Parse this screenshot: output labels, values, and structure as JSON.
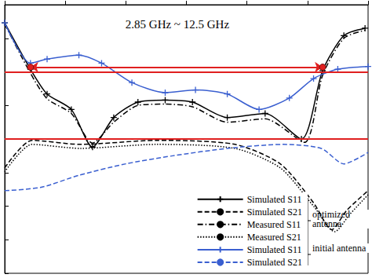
{
  "chart_data": {
    "type": "line",
    "xlim": [
      2,
      14
    ],
    "xticks": [
      2,
      4,
      6,
      8,
      10,
      12,
      14
    ],
    "ylim": [
      -40,
      0
    ],
    "yticks": [
      -40,
      -35,
      -30,
      -25,
      -20,
      -15,
      -10,
      -5,
      0
    ],
    "grid": false,
    "tick_labels": false,
    "legend": "lower right",
    "annotations": [
      {
        "text": "2.85 GHz ~ 12.5 GHz",
        "x": 7.7,
        "y": -2.9
      }
    ],
    "range_arrow": {
      "x": [
        2.85,
        12.5
      ],
      "y": -9.3,
      "color": "#e02020"
    },
    "hlines": [
      {
        "y": -10,
        "color": "#e02020"
      },
      {
        "y": -20,
        "color": "#e02020"
      }
    ],
    "legend_groups": [
      {
        "label": "optimized antenna",
        "series": [
          "Simulated S11",
          "Simulated S21",
          "Measured S11",
          "Measured S21"
        ]
      },
      {
        "label": "initial antenna",
        "series": [
          "Simulated S11 ",
          "Simulated S21 "
        ]
      }
    ],
    "series": [
      {
        "name": "Simulated S11",
        "color": "#000000",
        "marker": "plus",
        "line_style": "solid",
        "x": [
          2,
          2.85,
          3.4,
          4.2,
          4.9,
          5.6,
          6.4,
          7.3,
          8.2,
          9.35,
          10.6,
          11.8,
          12.5,
          13.2,
          13.9
        ],
        "values": [
          -2.7,
          -9.6,
          -13.3,
          -15.6,
          -21.2,
          -16.8,
          -14.5,
          -14.2,
          -14.5,
          -16.8,
          -16.2,
          -20,
          -9.8,
          -4.6,
          -3.5
        ]
      },
      {
        "name": "Simulated S21",
        "color": "#000000",
        "line_style": "dashed",
        "x": [
          2,
          2.9,
          4.5,
          7.0,
          9.6,
          11.1,
          12.2,
          12.8,
          13.3,
          14
        ],
        "values": [
          -24.3,
          -20.2,
          -20.8,
          -20.2,
          -20.8,
          -23.7,
          -29.5,
          -33.5,
          -30.6,
          -27.7
        ]
      },
      {
        "name": "Measured S11",
        "color": "#000000",
        "line_style": "dashdot",
        "x": [
          2,
          2.85,
          3.4,
          4.2,
          4.9,
          5.6,
          6.4,
          7.3,
          8.2,
          9.35,
          10.6,
          11.9,
          12.5,
          13.2,
          13.9
        ],
        "values": [
          -2.9,
          -10.2,
          -14.0,
          -16.2,
          -20.6,
          -17.5,
          -15.0,
          -14.8,
          -15.2,
          -17.5,
          -17.0,
          -20.5,
          -10.5,
          -5.0,
          -3.8
        ]
      },
      {
        "name": "Measured S21",
        "color": "#000000",
        "line_style": "dotted",
        "x": [
          2,
          2.9,
          4.5,
          7.0,
          9.6,
          11.1,
          12.2,
          12.9,
          13.4,
          14
        ],
        "values": [
          -24.9,
          -20.8,
          -21.4,
          -20.8,
          -21.4,
          -24.3,
          -30.0,
          -33.8,
          -31.2,
          -28.3
        ]
      },
      {
        "name": "Simulated S11 ",
        "color": "#3a5fd0",
        "marker": "plus",
        "line_style": "solid",
        "x": [
          2,
          2.85,
          3.4,
          4.45,
          5.2,
          6.2,
          7.3,
          8.3,
          9.35,
          10.4,
          11.4,
          12.2,
          13.0,
          14
        ],
        "values": [
          -2.7,
          -8.7,
          -8.1,
          -7.5,
          -8.7,
          -11.6,
          -13.1,
          -12.7,
          -13.3,
          -15.6,
          -13.9,
          -11.0,
          -9.6,
          -9.2
        ]
      },
      {
        "name": "Simulated S21 ",
        "color": "#3a5fd0",
        "line_style": "dashed",
        "x": [
          2,
          3.2,
          4.45,
          6.0,
          7.55,
          9.35,
          11.2,
          12.45,
          13.2,
          14
        ],
        "values": [
          -27.7,
          -27.2,
          -25.4,
          -23.7,
          -22.5,
          -21.4,
          -20.8,
          -21.4,
          -23.7,
          -22.0
        ]
      }
    ]
  }
}
